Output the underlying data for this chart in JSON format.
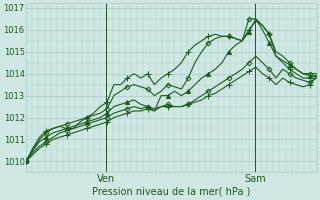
{
  "xlabel": "Pression niveau de la mer( hPa )",
  "background_color": "#cfe8e4",
  "grid_color": "#a8ccc8",
  "line_color": "#1a5c1a",
  "ylim": [
    1009.5,
    1017.2
  ],
  "xlim": [
    0,
    47
  ],
  "ven_x": 13,
  "sam_x": 37,
  "series": [
    [
      1010.0,
      1010.6,
      1011.1,
      1011.4,
      1011.5,
      1011.6,
      1011.5,
      1011.5,
      1011.8,
      1012.0,
      1012.2,
      1012.5,
      1012.7,
      1013.5,
      1013.5,
      1013.8,
      1014.0,
      1013.8,
      1014.0,
      1013.5,
      1013.8,
      1014.0,
      1014.2,
      1014.5,
      1015.0,
      1015.3,
      1015.5,
      1015.7,
      1015.8,
      1015.7,
      1015.7,
      1015.6,
      1015.5,
      1016.0,
      1016.4,
      1016.2,
      1015.8,
      1014.8,
      1014.5,
      1014.2,
      1014.0,
      1013.8,
      1013.8,
      1013.9
    ],
    [
      1010.0,
      1010.5,
      1011.0,
      1011.3,
      1011.5,
      1011.6,
      1011.7,
      1011.8,
      1011.9,
      1012.0,
      1012.1,
      1012.2,
      1012.4,
      1013.0,
      1013.2,
      1013.4,
      1013.5,
      1013.4,
      1013.3,
      1013.0,
      1013.2,
      1013.5,
      1013.4,
      1013.3,
      1013.8,
      1014.5,
      1015.0,
      1015.4,
      1015.6,
      1015.7,
      1015.7,
      1015.6,
      1015.5,
      1016.5,
      1016.5,
      1016.2,
      1015.8,
      1015.0,
      1014.8,
      1014.5,
      1014.2,
      1014.0,
      1014.0,
      1014.0
    ],
    [
      1010.0,
      1010.5,
      1010.9,
      1011.1,
      1011.3,
      1011.4,
      1011.5,
      1011.6,
      1011.7,
      1011.8,
      1011.9,
      1012.0,
      1012.2,
      1012.5,
      1012.6,
      1012.7,
      1012.8,
      1012.6,
      1012.5,
      1012.3,
      1013.0,
      1013.0,
      1013.2,
      1013.0,
      1013.2,
      1013.5,
      1013.8,
      1014.0,
      1014.2,
      1014.5,
      1015.0,
      1015.3,
      1015.5,
      1015.9,
      1016.5,
      1016.0,
      1015.4,
      1014.8,
      1014.6,
      1014.4,
      1014.2,
      1014.0,
      1013.9,
      1013.9
    ],
    [
      1010.0,
      1010.4,
      1010.7,
      1010.9,
      1011.1,
      1011.3,
      1011.4,
      1011.5,
      1011.6,
      1011.7,
      1011.8,
      1011.9,
      1012.0,
      1012.2,
      1012.3,
      1012.4,
      1012.5,
      1012.4,
      1012.5,
      1012.4,
      1012.5,
      1012.6,
      1012.5,
      1012.5,
      1012.6,
      1012.8,
      1013.0,
      1013.2,
      1013.4,
      1013.6,
      1013.8,
      1014.0,
      1014.2,
      1014.5,
      1014.8,
      1014.5,
      1014.2,
      1013.8,
      1014.2,
      1014.0,
      1013.8,
      1013.7,
      1013.6,
      1013.8
    ],
    [
      1010.0,
      1010.3,
      1010.6,
      1010.8,
      1011.0,
      1011.1,
      1011.2,
      1011.3,
      1011.4,
      1011.5,
      1011.6,
      1011.7,
      1011.8,
      1012.0,
      1012.1,
      1012.2,
      1012.3,
      1012.3,
      1012.4,
      1012.3,
      1012.5,
      1012.5,
      1012.5,
      1012.5,
      1012.6,
      1012.7,
      1012.8,
      1013.0,
      1013.1,
      1013.3,
      1013.5,
      1013.7,
      1013.9,
      1014.1,
      1014.3,
      1014.0,
      1013.8,
      1013.5,
      1013.8,
      1013.6,
      1013.5,
      1013.4,
      1013.5,
      1013.9
    ]
  ],
  "yticks": [
    1010,
    1011,
    1012,
    1013,
    1014,
    1015,
    1016,
    1017
  ],
  "markers": [
    "+",
    "D",
    "^",
    "D",
    "+"
  ],
  "marker_sizes": [
    4,
    2.5,
    3,
    2.5,
    4
  ],
  "markevery": 3
}
